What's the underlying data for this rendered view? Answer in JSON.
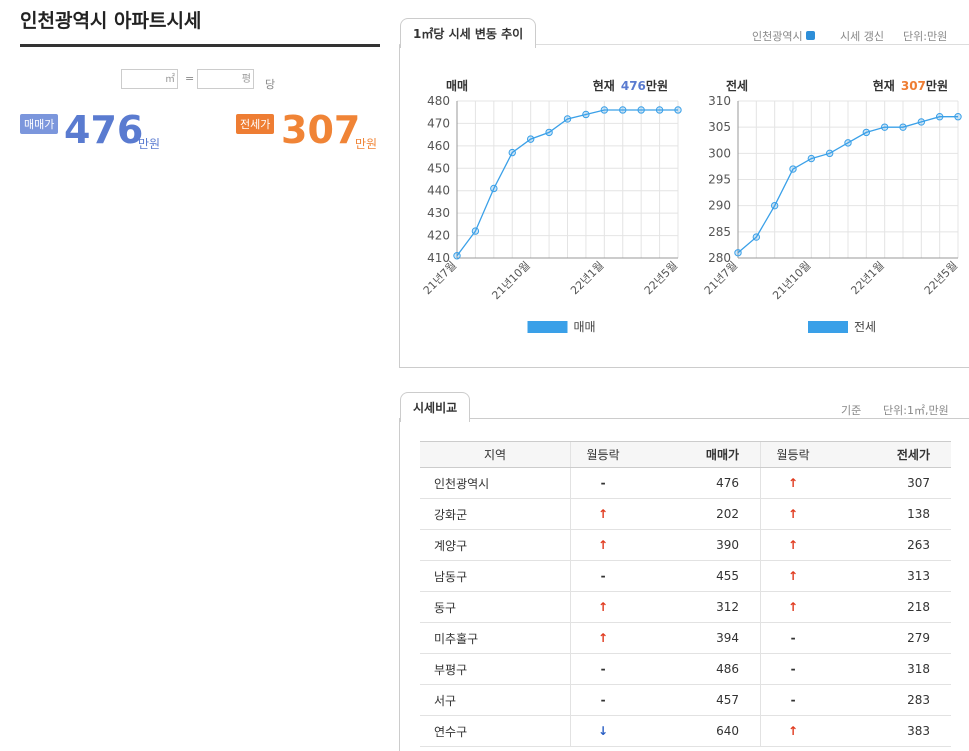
{
  "page_title": "인천광역시 아파트시세",
  "converter": {
    "unit_m2": "㎡",
    "equals": "=",
    "unit_pyeong": "평",
    "suffix": "당"
  },
  "summary": {
    "sale_label": "매매가",
    "sale_value": 476,
    "sale_unit": "만원",
    "rent_label": "전세가",
    "rent_value": 307,
    "rent_unit": "만원"
  },
  "trend_panel": {
    "tab": "1㎡당 시세 변동 추이",
    "region": "인천광역시",
    "refresh": "시세 갱신",
    "unit": "단위:만원"
  },
  "chart_data": [
    {
      "type": "line",
      "title": "매매",
      "current_label": "현재",
      "current": 476,
      "current_unit": "만원",
      "categories": [
        "21년7월",
        null,
        null,
        null,
        "21년10월",
        null,
        null,
        null,
        "22년1월",
        null,
        null,
        null,
        "22년5월"
      ],
      "series": [
        {
          "name": "매매",
          "color": "#3aa0e8",
          "values": [
            411,
            422,
            441,
            457,
            463,
            466,
            472,
            474,
            476,
            476,
            476,
            476,
            476
          ]
        }
      ],
      "ylim": [
        410,
        480
      ],
      "yticks": [
        410,
        420,
        430,
        440,
        450,
        460,
        470,
        480
      ],
      "grid": true
    },
    {
      "type": "line",
      "title": "전세",
      "current_label": "현재",
      "current": 307,
      "current_unit": "만원",
      "categories": [
        "21년7월",
        null,
        null,
        null,
        "21년10월",
        null,
        null,
        null,
        "22년1월",
        null,
        null,
        null,
        "22년5월"
      ],
      "series": [
        {
          "name": "전세",
          "color": "#3aa0e8",
          "values": [
            281,
            284,
            290,
            297,
            299,
            300,
            302,
            304,
            305,
            305,
            306,
            307,
            307
          ]
        }
      ],
      "ylim": [
        280,
        310
      ],
      "yticks": [
        280,
        285,
        290,
        295,
        300,
        305,
        310
      ],
      "grid": true
    }
  ],
  "compare_panel": {
    "tab": "시세비교",
    "basis": "기준",
    "unit": "단위:1㎡,만원"
  },
  "table": {
    "header": [
      "지역",
      "월등락",
      "매매가",
      "월등락",
      "전세가"
    ],
    "rows": [
      [
        "인천광역시",
        "-",
        476,
        "↑",
        307
      ],
      [
        "강화군",
        "↑",
        202,
        "↑",
        138
      ],
      [
        "계양구",
        "↑",
        390,
        "↑",
        263
      ],
      [
        "남동구",
        "-",
        455,
        "↑",
        313
      ],
      [
        "동구",
        "↑",
        312,
        "↑",
        218
      ],
      [
        "미추홀구",
        "↑",
        394,
        "-",
        279
      ],
      [
        "부평구",
        "-",
        486,
        "-",
        318
      ],
      [
        "서구",
        "-",
        457,
        "-",
        283
      ],
      [
        "연수구",
        "↓",
        640,
        "↑",
        383
      ]
    ]
  }
}
